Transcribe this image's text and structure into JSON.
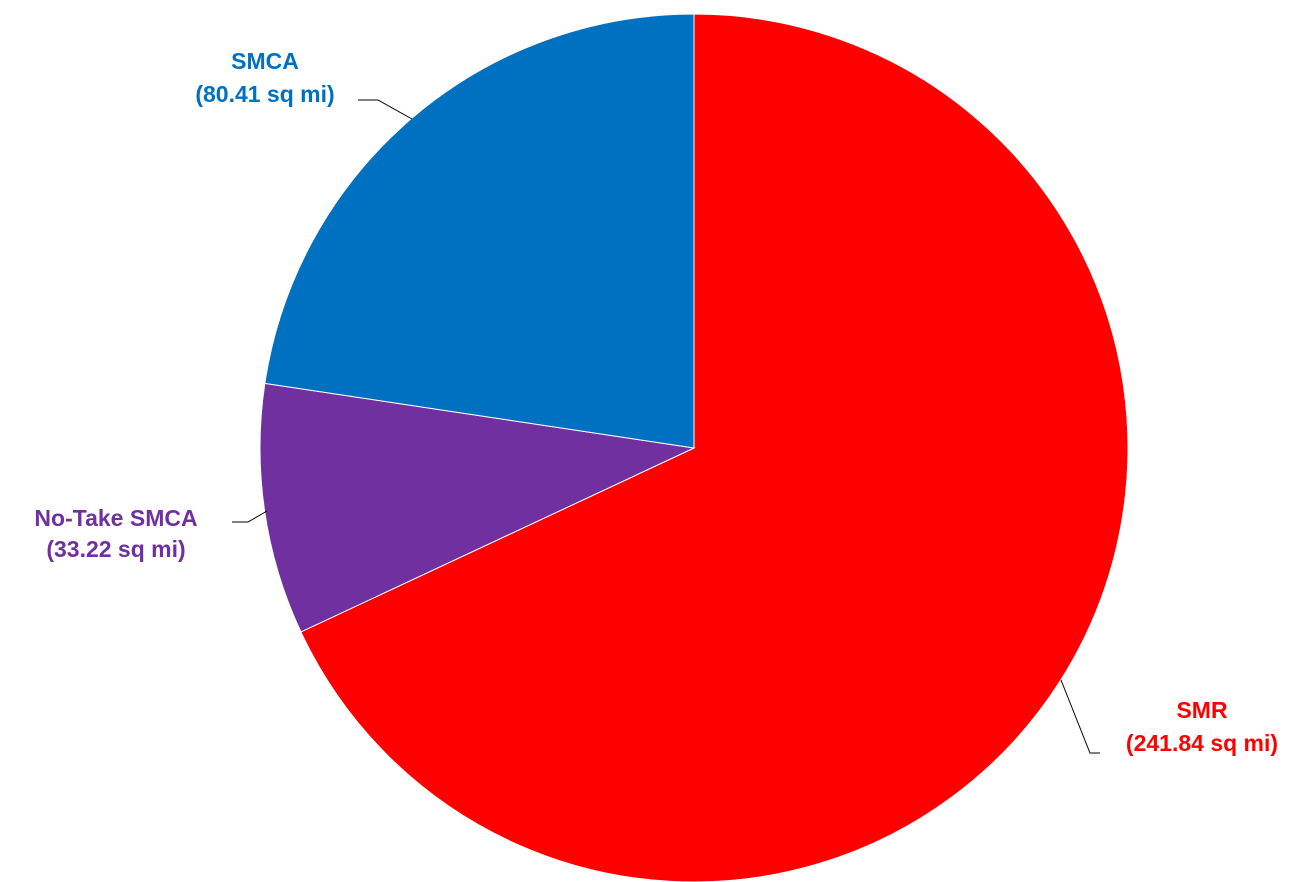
{
  "chart_data": {
    "type": "pie",
    "start_angle": "12 o'clock, clockwise",
    "slices": [
      {
        "label": "SMR",
        "value_text": "(241.84 sq mi)",
        "value": 241.84,
        "color": "#FF0000"
      },
      {
        "label": "No-Take SMCA",
        "value_text": "(33.22 sq mi)",
        "value": 33.22,
        "color": "#7030A0"
      },
      {
        "label": "SMCA",
        "value_text": "(80.41 sq mi)",
        "value": 80.41,
        "color": "#0070C0"
      }
    ],
    "leader_line_color": "#000000",
    "background": "#FFFFFF"
  }
}
